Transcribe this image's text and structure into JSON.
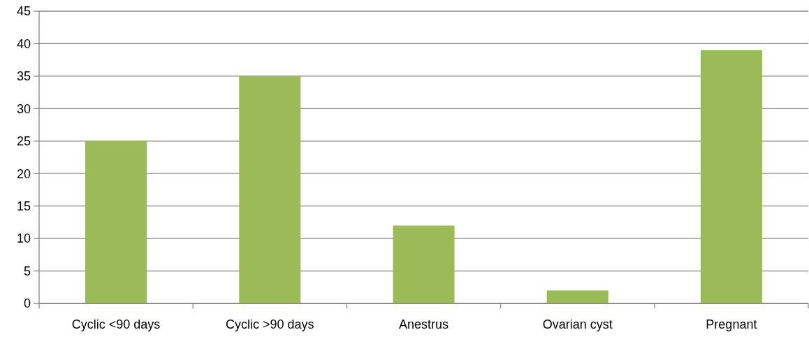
{
  "chart_data": {
    "type": "bar",
    "categories": [
      "Cyclic <90 days",
      "Cyclic >90 days",
      "Anestrus",
      "Ovarian cyst",
      "Pregnant"
    ],
    "values": [
      25,
      35,
      12,
      2,
      39
    ],
    "color": "#9bbb59",
    "ylim": [
      0,
      45
    ],
    "yticks": [
      0,
      5,
      10,
      15,
      20,
      25,
      30,
      35,
      40,
      45
    ],
    "grid": "y"
  }
}
